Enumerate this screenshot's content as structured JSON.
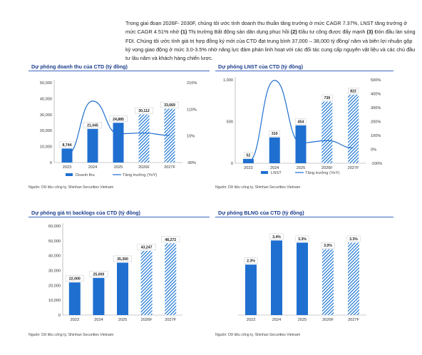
{
  "intro": {
    "p1": "Trong giai đoạn 2026F- 2030F, chúng tôi ước tính doanh thu thuần tăng trưởng ở mức CAGR 7.37%, LNST tăng trưởng ở mức CAGR 4.51% nhờ",
    "m1": "(1)",
    "p2": "Thị trường Bất động sản dân dụng phục hồi",
    "m2": "(2)",
    "p3": "Đầu tư công được đẩy mạnh",
    "m3": "(3)",
    "p4": "Đón đầu làn sóng FDI. Chúng tôi ước tính giá trị hợp đồng ký mới của CTD đạt trung bình 37,000 – 38,000 tỷ đồng/ năm và biên lợi nhuận gộp kỳ vọng giao động ở mức 3.0-3.5% nhờ năng lực đảm phán linh hoạt với các đối tác cung cấp nguyên vật liệu và các chủ đầu tư lâu năm và khách hàng chiến lược."
  },
  "colors": {
    "bar_actual": "#1f6fd0",
    "bar_forecast": "#2b7fd6",
    "line": "#1f6fd0",
    "title": "#1a3c8c"
  },
  "chart_data": [
    {
      "type": "bar",
      "title": "Dự phóng doanh thu của CTD (tỷ đồng)",
      "source": "Nguồn: Dữ liệu công ty, Shinhan Securities Vietnam",
      "categories": [
        "2023",
        "2024",
        "2025",
        "2026F",
        "2027F"
      ],
      "forecast_from_index": 3,
      "series": [
        {
          "name": "Doanh thu",
          "values": [
            8744,
            21045,
            24885,
            30112,
            33669
          ]
        },
        {
          "name": "Tăng trưởng (YoY)",
          "kind": "line",
          "axis": "right",
          "values": [
            -60,
            141,
            18,
            21,
            12
          ]
        }
      ],
      "data_labels": [
        "8,744",
        "21,045",
        "24,885",
        "30,112",
        "33,669"
      ],
      "ylim": [
        0,
        50000
      ],
      "yticks": [
        0,
        10000,
        20000,
        30000,
        40000,
        50000
      ],
      "ytick_labels": [
        "0",
        "10,000",
        "20,000",
        "30,000",
        "40,000",
        "50,000"
      ],
      "y2lim": [
        -90,
        210
      ],
      "y2ticks": [
        -90,
        10,
        110,
        210
      ],
      "y2tick_labels": [
        "-90%",
        "10%",
        "110%",
        "210%"
      ],
      "legend": [
        "Doanh thu",
        "Tăng trưởng (YoY)"
      ],
      "legend_position": "bottom"
    },
    {
      "type": "bar",
      "title": "Dự phóng LNST của CTD (tỷ đồng)",
      "source": "Nguồn: Dữ liệu công ty, Shinhan Securities Vietnam",
      "categories": [
        "2023",
        "2024",
        "2025",
        "2026F",
        "2027F"
      ],
      "forecast_from_index": 3,
      "series": [
        {
          "name": "LNST",
          "values": [
            52,
            310,
            454,
            739,
            822
          ]
        },
        {
          "name": "Tăng trưởng (YoY)",
          "kind": "line",
          "axis": "right",
          "values": [
            -90,
            496,
            46,
            63,
            11
          ]
        }
      ],
      "data_labels": [
        "52",
        "310",
        "454",
        "739",
        "822"
      ],
      "ylim": [
        0,
        1000
      ],
      "yticks": [
        0,
        500,
        1000
      ],
      "ytick_labels": [
        "0",
        "500",
        "1,000"
      ],
      "y2lim": [
        -100,
        500
      ],
      "y2ticks": [
        -100,
        0,
        100,
        200,
        300,
        400,
        500
      ],
      "y2tick_labels": [
        "-100%",
        "0%",
        "100%",
        "200%",
        "300%",
        "400%",
        "500%"
      ],
      "legend": [
        "LNST",
        "Tăng trưởng (YoY)"
      ],
      "legend_position": "bottom"
    },
    {
      "type": "bar",
      "title": "Dự phóng giá trị backlogs của CTD (tỷ đồng)",
      "source": "Nguồn: Dữ liệu công ty, Shinhan Securities Vietnam",
      "categories": [
        "2023",
        "2024",
        "2025",
        "2026F",
        "2027F"
      ],
      "forecast_from_index": 3,
      "series": [
        {
          "values": [
            22000,
            25000,
            35300,
            43247,
            48272
          ]
        }
      ],
      "data_labels": [
        "22,000",
        "25,000",
        "35,300",
        "43,247",
        "48,272"
      ],
      "ylim": [
        0,
        60000
      ],
      "yticks": [
        0,
        10000,
        20000,
        30000,
        40000,
        50000,
        60000
      ],
      "ytick_labels": [
        "0",
        "10,000",
        "20,000",
        "30,000",
        "40,000",
        "50,000",
        "60,000"
      ]
    },
    {
      "type": "bar",
      "title": "Dự phóng BLNG của CTD (tỷ đồng)",
      "source": "Nguồn: Dữ liệu công ty, Shinhan Securities Vietnam",
      "categories": [
        "2023",
        "2024",
        "2025",
        "2026F",
        "2027F"
      ],
      "forecast_from_index": 3,
      "series": [
        {
          "values": [
            2.3,
            3.4,
            3.3,
            3.0,
            3.3
          ]
        }
      ],
      "data_labels": [
        "2.3%",
        "3.4%",
        "3.3%",
        "3.0%",
        "3.3%"
      ],
      "ylim": [
        0,
        3.8
      ]
    }
  ]
}
